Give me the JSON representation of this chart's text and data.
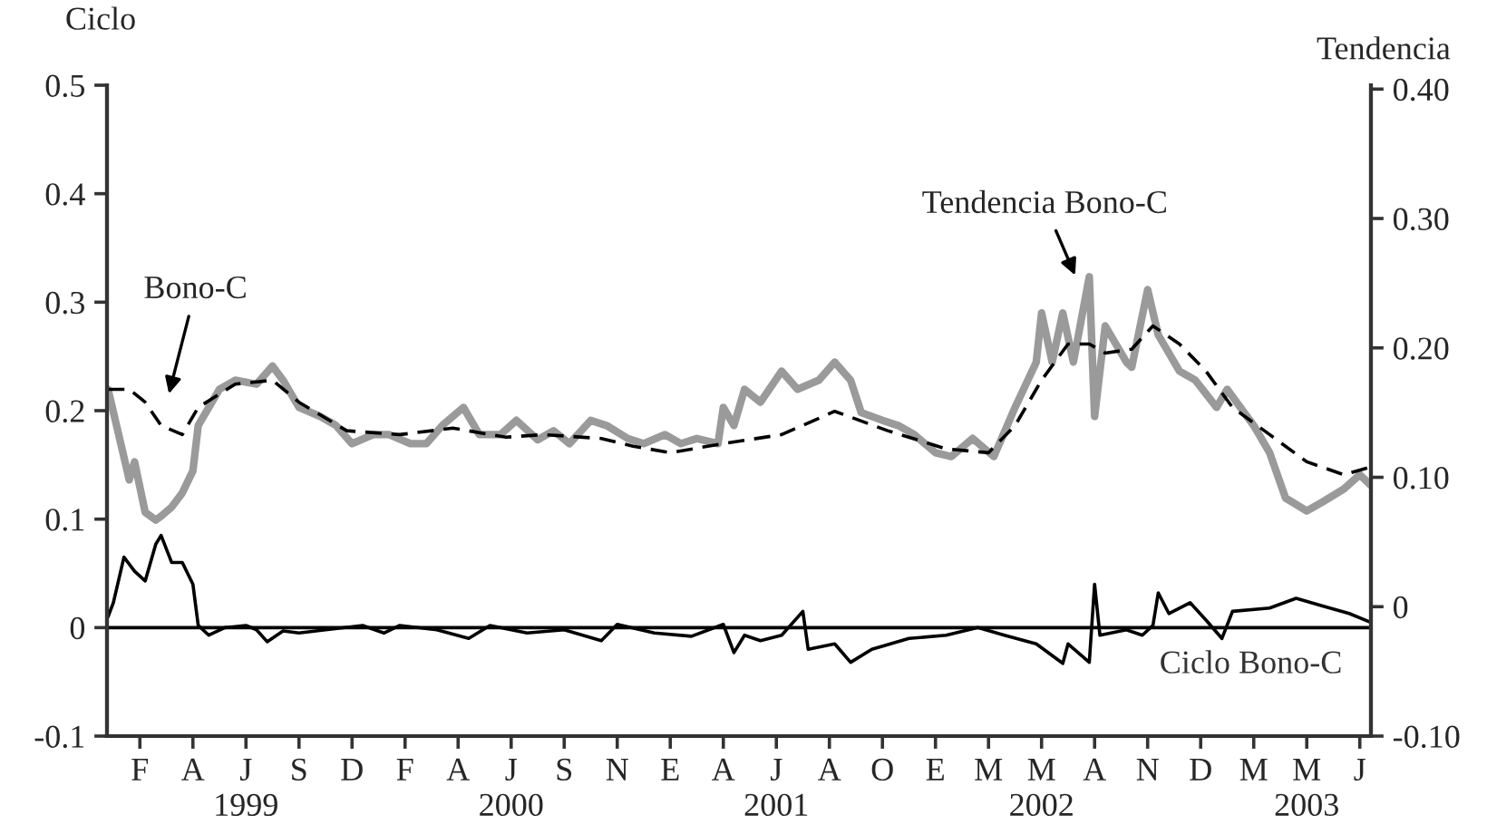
{
  "chart_data": {
    "type": "line",
    "ylabel": "Ciclo",
    "y2label": "Tendencia",
    "categories": [
      null,
      null,
      null,
      null,
      null,
      null,
      "F",
      null,
      null,
      null,
      null,
      null,
      null,
      null,
      null,
      null,
      "A",
      null,
      null,
      null,
      null,
      null,
      null,
      null,
      null,
      null,
      "J\n1999",
      null,
      null,
      null,
      null,
      null,
      null,
      null,
      null,
      null,
      "S",
      null,
      null,
      null,
      null,
      null,
      null,
      null,
      null,
      null,
      "D",
      null,
      null,
      null,
      null,
      null,
      null,
      null,
      null,
      null,
      "F",
      null,
      null,
      null,
      null,
      null,
      null,
      null,
      null,
      null,
      "A",
      null,
      null,
      null,
      null,
      null,
      null,
      null,
      null,
      null,
      "J\n2000",
      null,
      null,
      null,
      null,
      null,
      null,
      null,
      null,
      null,
      "S",
      null,
      null,
      null,
      null,
      null,
      null,
      null,
      null,
      null,
      "N",
      null,
      null,
      null,
      null,
      null,
      null,
      null,
      null,
      null,
      "E",
      null,
      null,
      null,
      null,
      null,
      null,
      null,
      null,
      null,
      "A",
      null,
      null,
      null,
      null,
      null,
      null,
      null,
      null,
      null,
      "J\n2001",
      null,
      null,
      null,
      null,
      null,
      null,
      null,
      null,
      null,
      "A",
      null,
      null,
      null,
      null,
      null,
      null,
      null,
      null,
      null,
      "O",
      null,
      null,
      null,
      null,
      null,
      null,
      null,
      null,
      null,
      "E",
      null,
      null,
      null,
      null,
      null,
      null,
      null,
      null,
      null,
      "M",
      null,
      null,
      null,
      null,
      null,
      null,
      null,
      null,
      null,
      "M\n2002",
      null,
      null,
      null,
      null,
      null,
      null,
      null,
      null,
      null,
      "A",
      null,
      null,
      null,
      null,
      null,
      null,
      null,
      null,
      null,
      "N",
      null,
      null,
      null,
      null,
      null,
      null,
      null,
      null,
      null,
      "D",
      null,
      null,
      null,
      null,
      null,
      null,
      null,
      null,
      null,
      "M",
      null,
      null,
      null,
      null,
      null,
      null,
      null,
      null,
      null,
      "M\n2003",
      null,
      null,
      null,
      null,
      null,
      null,
      null,
      null,
      null,
      "J",
      null,
      null
    ],
    "ylim": [
      -0.1,
      0.5
    ],
    "yticks": [
      -0.1,
      0,
      0.1,
      0.2,
      0.3,
      0.4,
      0.5
    ],
    "y2lim": [
      -0.1,
      0.403
    ],
    "y2ticks": [
      {
        "value": -0.1,
        "label": "-0.10"
      },
      0,
      {
        "value": 0.1,
        "label": "0.10"
      },
      {
        "value": 0.2,
        "label": "0.20"
      },
      {
        "value": 0.3,
        "label": "0.30"
      },
      {
        "value": 0.4,
        "label": "0.40"
      }
    ],
    "grid": false,
    "legend": false,
    "marker": "none",
    "series": [
      {
        "color": "#9a9a9a",
        "axis": "y2",
        "line_style": "solid",
        "values": [
          0.168,
          null,
          0.133,
          null,
          0.098,
          0.112,
          null,
          0.073,
          null,
          0.067,
          0.07,
          null,
          0.077,
          null,
          0.088,
          null,
          0.105,
          0.14,
          null,
          0.154,
          null,
          0.168,
          null,
          null,
          0.175,
          null,
          null,
          null,
          0.172,
          null,
          null,
          0.186,
          null,
          0.175,
          null,
          null,
          0.154,
          null,
          null,
          null,
          0.147,
          null,
          null,
          0.14,
          null,
          null,
          0.126,
          null,
          null,
          null,
          0.133,
          null,
          null,
          0.133,
          null,
          null,
          null,
          0.126,
          null,
          null,
          0.126,
          null,
          null,
          0.14,
          null,
          null,
          null,
          0.154,
          null,
          null,
          0.133,
          null,
          null,
          null,
          0.133,
          null,
          null,
          0.144,
          null,
          null,
          null,
          0.129,
          null,
          null,
          0.136,
          null,
          null,
          0.126,
          null,
          null,
          null,
          0.144,
          null,
          null,
          0.14,
          null,
          null,
          null,
          0.13,
          null,
          null,
          0.126,
          null,
          null,
          null,
          0.133,
          null,
          null,
          0.126,
          null,
          null,
          0.13,
          null,
          null,
          null,
          0.126,
          0.154,
          null,
          0.14,
          null,
          0.168,
          null,
          null,
          0.158,
          null,
          null,
          null,
          0.182,
          null,
          null,
          0.168,
          null,
          null,
          null,
          0.175,
          null,
          null,
          0.189,
          null,
          null,
          0.175,
          null,
          0.15,
          null,
          null,
          null,
          0.144,
          null,
          null,
          0.14,
          null,
          null,
          0.133,
          null,
          null,
          null,
          0.119,
          null,
          null,
          0.116,
          null,
          null,
          null,
          0.13,
          null,
          null,
          null,
          0.116,
          null,
          null,
          null,
          0.154,
          null,
          null,
          null,
          0.189,
          0.227,
          null,
          0.189,
          null,
          0.227,
          null,
          0.189,
          null,
          null,
          0.255,
          0.147,
          null,
          0.217,
          null,
          null,
          null,
          0.189,
          0.185,
          null,
          null,
          0.245,
          null,
          0.21,
          null,
          null,
          null,
          0.182,
          null,
          null,
          0.175,
          null,
          null,
          null,
          0.154,
          null,
          0.168,
          null,
          null,
          null,
          null,
          0.14,
          null,
          null,
          0.119,
          null,
          null,
          0.084,
          null,
          null,
          null,
          0.074,
          null,
          null,
          0.081,
          null,
          null,
          null,
          0.091,
          null,
          null,
          0.102,
          null,
          0.094
        ]
      },
      {
        "color": "#000000",
        "axis": "y2",
        "line_style": "dashed",
        "values": [
          0.168,
          null,
          null,
          null,
          0.168,
          null,
          null,
          0.158,
          null,
          null,
          0.14,
          null,
          null,
          null,
          0.133,
          null,
          null,
          0.154,
          null,
          null,
          null,
          null,
          null,
          null,
          0.172,
          null,
          null,
          null,
          null,
          null,
          null,
          0.175,
          null,
          null,
          null,
          null,
          0.158,
          null,
          null,
          null,
          null,
          null,
          null,
          null,
          null,
          0.136,
          null,
          null,
          null,
          null,
          null,
          null,
          null,
          null,
          null,
          0.133,
          null,
          null,
          null,
          null,
          null,
          null,
          null,
          null,
          null,
          0.138,
          null,
          null,
          null,
          null,
          null,
          null,
          null,
          null,
          null,
          0.131,
          null,
          null,
          null,
          null,
          null,
          null,
          0.133,
          null,
          null,
          null,
          null,
          null,
          null,
          null,
          null,
          null,
          null,
          0.13,
          null,
          null,
          null,
          null,
          null,
          0.124,
          null,
          null,
          null,
          null,
          null,
          null,
          0.119,
          null,
          null,
          null,
          null,
          null,
          null,
          null,
          null,
          null,
          0.126,
          null,
          null,
          null,
          null,
          null,
          null,
          null,
          null,
          null,
          null,
          0.133,
          null,
          null,
          null,
          null,
          null,
          null,
          null,
          null,
          null,
          0.151,
          null,
          null,
          null,
          null,
          null,
          null,
          null,
          null,
          null,
          0.136,
          null,
          null,
          null,
          null,
          null,
          null,
          null,
          null,
          null,
          null,
          0.122,
          null,
          null,
          null,
          null,
          null,
          null,
          null,
          0.119,
          null,
          null,
          null,
          null,
          0.14,
          null,
          null,
          null,
          null,
          0.175,
          null,
          null,
          null,
          null,
          0.203,
          null,
          null,
          null,
          0.203,
          null,
          null,
          0.196,
          null,
          null,
          null,
          null,
          0.199,
          null,
          null,
          null,
          0.217,
          null,
          null,
          null,
          null,
          0.203,
          null,
          null,
          null,
          null,
          0.182,
          null,
          null,
          null,
          null,
          0.154,
          null,
          null,
          null,
          null,
          null,
          null,
          0.133,
          null,
          null,
          null,
          null,
          null,
          null,
          0.112,
          null,
          null,
          null,
          null,
          null,
          null,
          0.102,
          null,
          null,
          null,
          null,
          0.108
        ]
      },
      {
        "color": "#000000",
        "axis": "y",
        "line_style": "solid",
        "values": [
          0.01,
          0.023,
          null,
          0.065,
          null,
          0.052,
          null,
          0.043,
          null,
          0.077,
          0.085,
          null,
          0.06,
          null,
          0.06,
          null,
          0.04,
          0.002,
          null,
          -0.007,
          null,
          null,
          0,
          null,
          null,
          null,
          0.002,
          null,
          -0.002,
          null,
          -0.013,
          null,
          null,
          -0.003,
          null,
          null,
          -0.005,
          null,
          null,
          null,
          null,
          -0.002,
          null,
          null,
          null,
          null,
          null,
          null,
          0.002,
          null,
          null,
          null,
          -0.005,
          null,
          null,
          0.002,
          null,
          null,
          null,
          null,
          null,
          null,
          -0.002,
          null,
          null,
          null,
          null,
          null,
          -0.01,
          null,
          null,
          null,
          0.002,
          null,
          null,
          null,
          null,
          null,
          null,
          -0.005,
          null,
          null,
          null,
          null,
          null,
          null,
          -0.002,
          null,
          null,
          null,
          null,
          null,
          null,
          -0.012,
          null,
          null,
          0.003,
          null,
          null,
          null,
          null,
          null,
          null,
          -0.005,
          null,
          null,
          null,
          null,
          null,
          null,
          -0.008,
          null,
          null,
          null,
          null,
          null,
          0.003,
          null,
          -0.023,
          null,
          -0.007,
          null,
          null,
          -0.012,
          null,
          null,
          null,
          -0.007,
          null,
          null,
          null,
          0.015,
          -0.02,
          null,
          null,
          null,
          null,
          -0.015,
          null,
          null,
          -0.032,
          null,
          null,
          null,
          -0.02,
          null,
          null,
          null,
          null,
          null,
          null,
          -0.01,
          null,
          null,
          null,
          null,
          null,
          null,
          -0.007,
          null,
          null,
          null,
          null,
          null,
          0,
          null,
          null,
          null,
          null,
          -0.007,
          null,
          null,
          null,
          null,
          null,
          -0.015,
          null,
          null,
          null,
          null,
          -0.033,
          -0.015,
          null,
          null,
          null,
          -0.032,
          0.04,
          -0.007,
          null,
          null,
          null,
          null,
          -0.002,
          null,
          null,
          -0.007,
          null,
          0.002,
          0.032,
          null,
          0.013,
          null,
          null,
          null,
          0.023,
          null,
          null,
          0.007,
          null,
          null,
          -0.01,
          null,
          0.015,
          null,
          null,
          null,
          null,
          null,
          null,
          0.018,
          null,
          null,
          null,
          null,
          0.027,
          null,
          null,
          null,
          null,
          0.02,
          null,
          null,
          null,
          null,
          0.013,
          null,
          null,
          null,
          0.005
        ]
      }
    ],
    "ref_lines": [
      {
        "axis": "y",
        "value": 0,
        "color": "#000000"
      }
    ],
    "annotations": [
      "Bono-C",
      "Tendencia Bono-C",
      "Ciclo Bono-C"
    ]
  }
}
